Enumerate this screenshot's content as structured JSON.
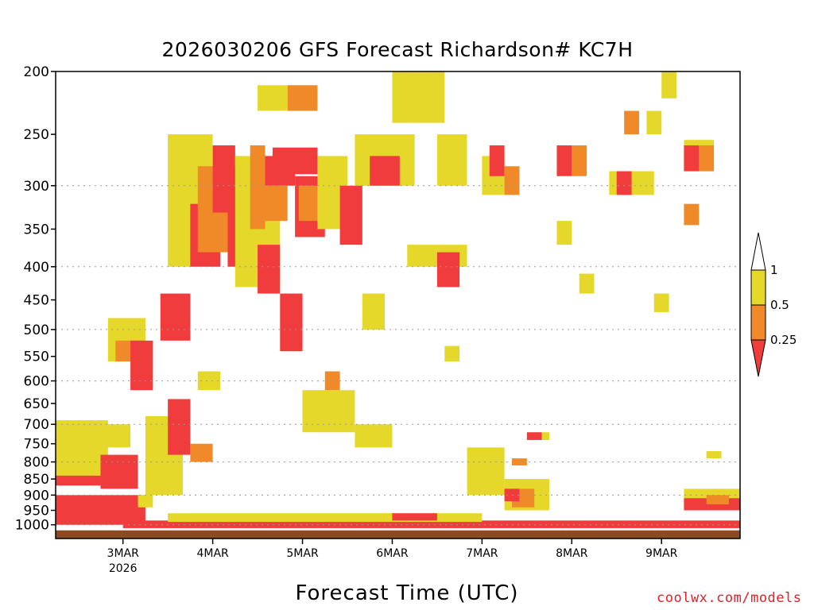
{
  "chart_data": {
    "type": "heatmap",
    "title": "2026030206 GFS Forecast Richardson# KC7H",
    "xlabel": "Forecast Time (UTC)",
    "ylabel": "",
    "x_start": "2026-03-02T06:00Z",
    "x_end": "2026-03-09T21:00Z",
    "x_ticks": [
      {
        "label": "3MAR",
        "sub": "2026",
        "date": "2026-03-03T00:00Z"
      },
      {
        "label": "4MAR",
        "sub": "",
        "date": "2026-03-04T00:00Z"
      },
      {
        "label": "5MAR",
        "sub": "",
        "date": "2026-03-05T00:00Z"
      },
      {
        "label": "6MAR",
        "sub": "",
        "date": "2026-03-06T00:00Z"
      },
      {
        "label": "7MAR",
        "sub": "",
        "date": "2026-03-07T00:00Z"
      },
      {
        "label": "8MAR",
        "sub": "",
        "date": "2026-03-08T00:00Z"
      },
      {
        "label": "9MAR",
        "sub": "",
        "date": "2026-03-09T00:00Z"
      }
    ],
    "y_scale": "log-pressure",
    "ylim": [
      1050,
      200
    ],
    "y_ticks": [
      200,
      250,
      300,
      350,
      400,
      450,
      500,
      550,
      600,
      650,
      700,
      750,
      800,
      850,
      900,
      950,
      1000
    ],
    "grid_lines": [
      300,
      400,
      500,
      600,
      700,
      800,
      900,
      1000
    ],
    "legend": {
      "placement": "right",
      "labels": [
        "1",
        "0.5",
        "0.25"
      ],
      "bins": [
        {
          "range": "> 1",
          "color": "#ffffff"
        },
        {
          "range": "0.5 - 1",
          "color": "#e5d82a"
        },
        {
          "range": "0.25 - 0.5",
          "color": "#f08a28"
        },
        {
          "range": "< 0.25",
          "color": "#f03c3c"
        }
      ]
    },
    "ground_color": "#8b4a22",
    "ground_pressure": 1020,
    "regions": [
      {
        "bin": "< 0.25",
        "time": "2026-03-02T06:00Z",
        "end": "2026-03-03T06:00Z",
        "p_top": 900,
        "p_bottom": 1000
      },
      {
        "bin": "0.5 - 1",
        "time": "2026-03-02T06:00Z",
        "end": "2026-03-02T20:00Z",
        "p_top": 690,
        "p_bottom": 860
      },
      {
        "bin": "< 0.25",
        "time": "2026-03-02T06:00Z",
        "end": "2026-03-02T18:00Z",
        "p_top": 840,
        "p_bottom": 870
      },
      {
        "bin": "0.5 - 1",
        "time": "2026-03-02T12:00Z",
        "end": "2026-03-03T02:00Z",
        "p_top": 700,
        "p_bottom": 760
      },
      {
        "bin": "< 0.25",
        "time": "2026-03-02T18:00Z",
        "end": "2026-03-03T04:00Z",
        "p_top": 780,
        "p_bottom": 880
      },
      {
        "bin": "0.5 - 1",
        "time": "2026-03-02T20:00Z",
        "end": "2026-03-03T06:00Z",
        "p_top": 480,
        "p_bottom": 560
      },
      {
        "bin": "0.25 - 0.5",
        "time": "2026-03-02T22:00Z",
        "end": "2026-03-03T04:00Z",
        "p_top": 520,
        "p_bottom": 560
      },
      {
        "bin": "< 0.25",
        "time": "2026-03-03T02:00Z",
        "end": "2026-03-03T08:00Z",
        "p_top": 520,
        "p_bottom": 620
      },
      {
        "bin": "0.5 - 1",
        "time": "2026-03-03T06:00Z",
        "end": "2026-03-03T16:00Z",
        "p_top": 680,
        "p_bottom": 900
      },
      {
        "bin": "< 0.25",
        "time": "2026-03-03T12:00Z",
        "end": "2026-03-03T18:00Z",
        "p_top": 640,
        "p_bottom": 780
      },
      {
        "bin": "0.25 - 0.5",
        "time": "2026-03-03T18:00Z",
        "end": "2026-03-04T00:00Z",
        "p_top": 750,
        "p_bottom": 800
      },
      {
        "bin": "0.5 - 1",
        "time": "2026-03-03T12:00Z",
        "end": "2026-03-04T00:00Z",
        "p_top": 250,
        "p_bottom": 400
      },
      {
        "bin": "< 0.25",
        "time": "2026-03-03T18:00Z",
        "end": "2026-03-04T02:00Z",
        "p_top": 320,
        "p_bottom": 400
      },
      {
        "bin": "0.25 - 0.5",
        "time": "2026-03-03T20:00Z",
        "end": "2026-03-04T08:00Z",
        "p_top": 280,
        "p_bottom": 380
      },
      {
        "bin": "< 0.25",
        "time": "2026-03-04T00:00Z",
        "end": "2026-03-04T06:00Z",
        "p_top": 260,
        "p_bottom": 330
      },
      {
        "bin": "< 0.25",
        "time": "2026-03-04T04:00Z",
        "end": "2026-03-04T12:00Z",
        "p_top": 300,
        "p_bottom": 400
      },
      {
        "bin": "0.5 - 1",
        "time": "2026-03-04T06:00Z",
        "end": "2026-03-04T18:00Z",
        "p_top": 270,
        "p_bottom": 430
      },
      {
        "bin": "0.25 - 0.5",
        "time": "2026-03-04T10:00Z",
        "end": "2026-03-04T14:00Z",
        "p_top": 260,
        "p_bottom": 350
      },
      {
        "bin": "< 0.25",
        "time": "2026-03-04T14:00Z",
        "end": "2026-03-04T22:00Z",
        "p_top": 270,
        "p_bottom": 300
      },
      {
        "bin": "< 0.25",
        "time": "2026-03-04T16:00Z",
        "end": "2026-03-05T04:00Z",
        "p_top": 262,
        "p_bottom": 288
      },
      {
        "bin": "0.25 - 0.5",
        "time": "2026-03-04T12:00Z",
        "end": "2026-03-04T20:00Z",
        "p_top": 300,
        "p_bottom": 340
      },
      {
        "bin": "0.5 - 1",
        "time": "2026-03-04T12:00Z",
        "end": "2026-03-04T20:00Z",
        "p_top": 210,
        "p_bottom": 230
      },
      {
        "bin": "0.25 - 0.5",
        "time": "2026-03-04T20:00Z",
        "end": "2026-03-05T04:00Z",
        "p_top": 210,
        "p_bottom": 230
      },
      {
        "bin": "< 0.25",
        "time": "2026-03-04T22:00Z",
        "end": "2026-03-05T06:00Z",
        "p_top": 290,
        "p_bottom": 360
      },
      {
        "bin": "0.25 - 0.5",
        "time": "2026-03-04T23:00Z",
        "end": "2026-03-05T06:00Z",
        "p_top": 300,
        "p_bottom": 340
      },
      {
        "bin": "0.5 - 1",
        "time": "2026-03-05T04:00Z",
        "end": "2026-03-05T12:00Z",
        "p_top": 270,
        "p_bottom": 350
      },
      {
        "bin": "< 0.25",
        "time": "2026-03-04T18:00Z",
        "end": "2026-03-05T00:00Z",
        "p_top": 440,
        "p_bottom": 540
      },
      {
        "bin": "< 0.25",
        "time": "2026-03-04T12:00Z",
        "end": "2026-03-04T18:00Z",
        "p_top": 370,
        "p_bottom": 440
      },
      {
        "bin": "0.5 - 1",
        "time": "2026-03-05T00:00Z",
        "end": "2026-03-05T14:00Z",
        "p_top": 620,
        "p_bottom": 720
      },
      {
        "bin": "0.25 - 0.5",
        "time": "2026-03-05T06:00Z",
        "end": "2026-03-05T10:00Z",
        "p_top": 580,
        "p_bottom": 620
      },
      {
        "bin": "0.5 - 1",
        "time": "2026-03-05T14:00Z",
        "end": "2026-03-06T00:00Z",
        "p_top": 700,
        "p_bottom": 760
      },
      {
        "bin": "0.5 - 1",
        "time": "2026-03-05T14:00Z",
        "end": "2026-03-06T06:00Z",
        "p_top": 250,
        "p_bottom": 300
      },
      {
        "bin": "< 0.25",
        "time": "2026-03-05T18:00Z",
        "end": "2026-03-06T02:00Z",
        "p_top": 270,
        "p_bottom": 300
      },
      {
        "bin": "0.5 - 1",
        "time": "2026-03-06T00:00Z",
        "end": "2026-03-06T14:00Z",
        "p_top": 200,
        "p_bottom": 240
      },
      {
        "bin": "0.5 - 1",
        "time": "2026-03-06T04:00Z",
        "end": "2026-03-06T20:00Z",
        "p_top": 370,
        "p_bottom": 400
      },
      {
        "bin": "< 0.25",
        "time": "2026-03-06T12:00Z",
        "end": "2026-03-06T18:00Z",
        "p_top": 380,
        "p_bottom": 430
      },
      {
        "bin": "0.5 - 1",
        "time": "2026-03-06T12:00Z",
        "end": "2026-03-06T20:00Z",
        "p_top": 250,
        "p_bottom": 300
      },
      {
        "bin": "0.5 - 1",
        "time": "2026-03-06T14:00Z",
        "end": "2026-03-06T18:00Z",
        "p_top": 530,
        "p_bottom": 560
      },
      {
        "bin": "0.5 - 1",
        "time": "2026-03-06T20:00Z",
        "end": "2026-03-07T06:00Z",
        "p_top": 760,
        "p_bottom": 900
      },
      {
        "bin": "0.5 - 1",
        "time": "2026-03-07T00:00Z",
        "end": "2026-03-07T06:00Z",
        "p_top": 270,
        "p_bottom": 310
      },
      {
        "bin": "< 0.25",
        "time": "2026-03-07T02:00Z",
        "end": "2026-03-07T06:00Z",
        "p_top": 260,
        "p_bottom": 290
      },
      {
        "bin": "0.25 - 0.5",
        "time": "2026-03-07T06:00Z",
        "end": "2026-03-07T10:00Z",
        "p_top": 280,
        "p_bottom": 310
      },
      {
        "bin": "< 0.25",
        "time": "2026-03-07T12:00Z",
        "end": "2026-03-07T16:00Z",
        "p_top": 720,
        "p_bottom": 740
      },
      {
        "bin": "0.5 - 1",
        "time": "2026-03-07T16:00Z",
        "end": "2026-03-07T18:00Z",
        "p_top": 720,
        "p_bottom": 740
      },
      {
        "bin": "0.5 - 1",
        "time": "2026-03-07T06:00Z",
        "end": "2026-03-07T18:00Z",
        "p_top": 850,
        "p_bottom": 950
      },
      {
        "bin": "0.25 - 0.5",
        "time": "2026-03-07T08:00Z",
        "end": "2026-03-07T14:00Z",
        "p_top": 880,
        "p_bottom": 940
      },
      {
        "bin": "< 0.25",
        "time": "2026-03-07T06:00Z",
        "end": "2026-03-07T10:00Z",
        "p_top": 880,
        "p_bottom": 920
      },
      {
        "bin": "0.25 - 0.5",
        "time": "2026-03-07T08:00Z",
        "end": "2026-03-07T12:00Z",
        "p_top": 790,
        "p_bottom": 810
      },
      {
        "bin": "< 0.25",
        "time": "2026-03-07T20:00Z",
        "end": "2026-03-08T00:00Z",
        "p_top": 260,
        "p_bottom": 290
      },
      {
        "bin": "0.25 - 0.5",
        "time": "2026-03-08T00:00Z",
        "end": "2026-03-08T04:00Z",
        "p_top": 260,
        "p_bottom": 290
      },
      {
        "bin": "0.5 - 1",
        "time": "2026-03-07T20:00Z",
        "end": "2026-03-08T00:00Z",
        "p_top": 340,
        "p_bottom": 370
      },
      {
        "bin": "0.5 - 1",
        "time": "2026-03-08T02:00Z",
        "end": "2026-03-08T06:00Z",
        "p_top": 410,
        "p_bottom": 440
      },
      {
        "bin": "0.5 - 1",
        "time": "2026-03-08T10:00Z",
        "end": "2026-03-08T22:00Z",
        "p_top": 285,
        "p_bottom": 310
      },
      {
        "bin": "< 0.25",
        "time": "2026-03-08T12:00Z",
        "end": "2026-03-08T16:00Z",
        "p_top": 285,
        "p_bottom": 310
      },
      {
        "bin": "0.25 - 0.5",
        "time": "2026-03-08T14:00Z",
        "end": "2026-03-08T18:00Z",
        "p_top": 230,
        "p_bottom": 250
      },
      {
        "bin": "0.5 - 1",
        "time": "2026-03-08T20:00Z",
        "end": "2026-03-09T00:00Z",
        "p_top": 230,
        "p_bottom": 250
      },
      {
        "bin": "0.5 - 1",
        "time": "2026-03-09T00:00Z",
        "end": "2026-03-09T04:00Z",
        "p_top": 200,
        "p_bottom": 220
      },
      {
        "bin": "0.5 - 1",
        "time": "2026-03-08T22:00Z",
        "end": "2026-03-09T02:00Z",
        "p_top": 440,
        "p_bottom": 470
      },
      {
        "bin": "0.5 - 1",
        "time": "2026-03-09T06:00Z",
        "end": "2026-03-09T14:00Z",
        "p_top": 255,
        "p_bottom": 285
      },
      {
        "bin": "< 0.25",
        "time": "2026-03-09T06:00Z",
        "end": "2026-03-09T10:00Z",
        "p_top": 260,
        "p_bottom": 285
      },
      {
        "bin": "0.25 - 0.5",
        "time": "2026-03-09T10:00Z",
        "end": "2026-03-09T14:00Z",
        "p_top": 260,
        "p_bottom": 285
      },
      {
        "bin": "0.25 - 0.5",
        "time": "2026-03-09T06:00Z",
        "end": "2026-03-09T10:00Z",
        "p_top": 320,
        "p_bottom": 345
      },
      {
        "bin": "0.5 - 1",
        "time": "2026-03-09T12:00Z",
        "end": "2026-03-09T16:00Z",
        "p_top": 770,
        "p_bottom": 790
      },
      {
        "bin": "0.5 - 1",
        "time": "2026-03-09T06:00Z",
        "end": "2026-03-09T21:00Z",
        "p_top": 880,
        "p_bottom": 940
      },
      {
        "bin": "< 0.25",
        "time": "2026-03-09T06:00Z",
        "end": "2026-03-09T21:00Z",
        "p_top": 910,
        "p_bottom": 950
      },
      {
        "bin": "0.25 - 0.5",
        "time": "2026-03-09T12:00Z",
        "end": "2026-03-09T18:00Z",
        "p_top": 900,
        "p_bottom": 930
      },
      {
        "bin": "< 0.25",
        "time": "2026-03-03T00:00Z",
        "end": "2026-03-09T21:00Z",
        "p_top": 985,
        "p_bottom": 1012
      },
      {
        "bin": "0.5 - 1",
        "time": "2026-03-03T12:00Z",
        "end": "2026-03-07T00:00Z",
        "p_top": 960,
        "p_bottom": 990
      },
      {
        "bin": "< 0.25",
        "time": "2026-03-06T00:00Z",
        "end": "2026-03-06T12:00Z",
        "p_top": 960,
        "p_bottom": 985
      },
      {
        "bin": "0.5 - 1",
        "time": "2026-03-03T04:00Z",
        "end": "2026-03-03T08:00Z",
        "p_top": 900,
        "p_bottom": 940
      },
      {
        "bin": "0.5 - 1",
        "time": "2026-03-03T20:00Z",
        "end": "2026-03-04T02:00Z",
        "p_top": 580,
        "p_bottom": 620
      },
      {
        "bin": "< 0.25",
        "time": "2026-03-03T10:00Z",
        "end": "2026-03-03T18:00Z",
        "p_top": 440,
        "p_bottom": 520
      },
      {
        "bin": "< 0.25",
        "time": "2026-03-05T10:00Z",
        "end": "2026-03-05T16:00Z",
        "p_top": 300,
        "p_bottom": 370
      },
      {
        "bin": "0.5 - 1",
        "time": "2026-03-05T16:00Z",
        "end": "2026-03-05T22:00Z",
        "p_top": 440,
        "p_bottom": 500
      }
    ]
  },
  "credit": "coolwx.com/models"
}
